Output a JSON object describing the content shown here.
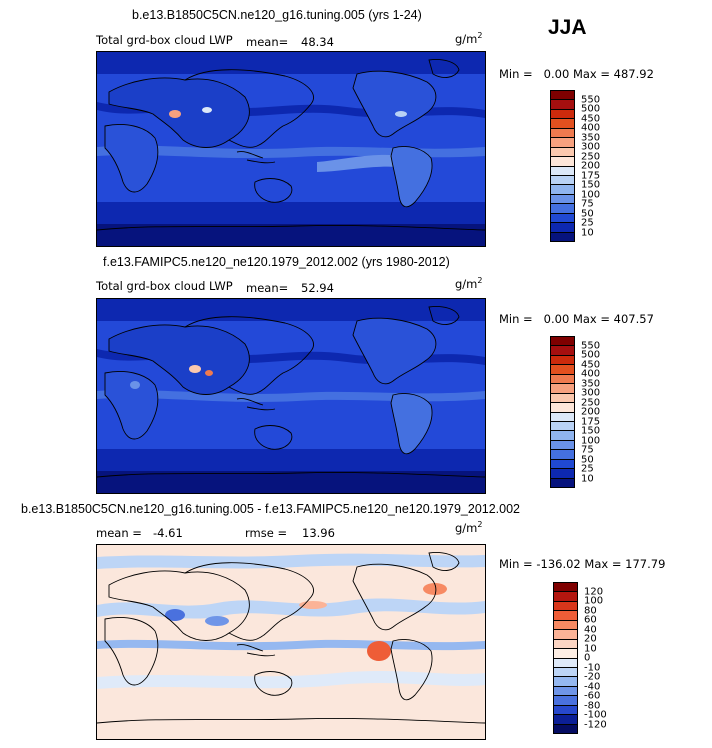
{
  "season": "JJA",
  "units_base": "g/m",
  "units_exp": "2",
  "panels": [
    {
      "title": "b.e13.B1850C5CN.ne120_g16.tuning.005 (yrs 1-24)",
      "variable": "Total grd-box cloud LWP",
      "mean_label": "mean=",
      "mean_value": "48.34",
      "min_label": "Min =",
      "min_value": "0.00",
      "max_label": "Max =",
      "max_value": "487.92",
      "colorbar": [
        "550",
        "500",
        "450",
        "400",
        "350",
        "300",
        "250",
        "200",
        "175",
        "150",
        "100",
        "75",
        "50",
        "25",
        "10"
      ]
    },
    {
      "title": "f.e13.FAMIPC5.ne120_ne120.1979_2012.002 (yrs 1980-2012)",
      "variable": "Total grd-box cloud LWP",
      "mean_label": "mean=",
      "mean_value": "52.94",
      "min_label": "Min =",
      "min_value": "0.00",
      "max_label": "Max =",
      "max_value": "407.57",
      "colorbar": [
        "550",
        "500",
        "450",
        "400",
        "350",
        "300",
        "250",
        "200",
        "175",
        "150",
        "100",
        "75",
        "50",
        "25",
        "10"
      ]
    },
    {
      "title": "b.e13.B1850C5CN.ne120_g16.tuning.005 - f.e13.FAMIPC5.ne120_ne120.1979_2012.002",
      "mean_label": "mean =",
      "mean_value": "-4.61",
      "rmse_label": "rmse =",
      "rmse_value": "13.96",
      "min_label": "Min =",
      "min_value": "-136.02",
      "max_label": "Max =",
      "max_value": "177.79",
      "colorbar": [
        "120",
        "100",
        "80",
        "60",
        "40",
        "20",
        "10",
        "0",
        "-10",
        "-20",
        "-40",
        "-60",
        "-80",
        "-100",
        "-120"
      ]
    }
  ],
  "colors": {
    "abs_scale": [
      "#7f0000",
      "#a50f0f",
      "#cc2a0c",
      "#e3501f",
      "#ef7a4f",
      "#f7a17f",
      "#fbc8ae",
      "#fde6d9",
      "#dce8f8",
      "#b9d2f5",
      "#8fb4ef",
      "#6a92e8",
      "#4470e0",
      "#2049d3",
      "#0d28b0",
      "#06137d"
    ],
    "diff_scale": [
      "#7f0000",
      "#b3160f",
      "#d8361b",
      "#ee5d37",
      "#f78a63",
      "#fbb397",
      "#fcd5c3",
      "#fdeee4",
      "#dfeaf9",
      "#bdd5f6",
      "#95b8f0",
      "#6f95e8",
      "#4a71de",
      "#2748cc",
      "#0c1f96",
      "#050c62"
    ],
    "ocean_abs": "#2349d8",
    "ocean_diff": "#fbe7dc"
  }
}
